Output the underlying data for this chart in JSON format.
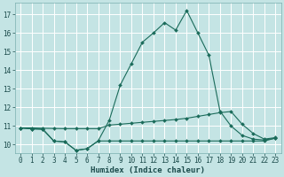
{
  "xlabel": "Humidex (Indice chaleur)",
  "bg_color": "#c4e4e4",
  "grid_color": "#ffffff",
  "line_color": "#1a6b5a",
  "xlim": [
    -0.5,
    23.5
  ],
  "ylim": [
    9.55,
    17.6
  ],
  "xticks": [
    0,
    1,
    2,
    3,
    4,
    5,
    6,
    7,
    8,
    9,
    10,
    11,
    12,
    13,
    14,
    15,
    16,
    17,
    18,
    19,
    20,
    21,
    22,
    23
  ],
  "yticks": [
    10,
    11,
    12,
    13,
    14,
    15,
    16,
    17
  ],
  "line1_y": [
    10.9,
    10.85,
    10.85,
    10.2,
    10.15,
    9.7,
    9.78,
    10.2,
    11.3,
    13.2,
    14.35,
    15.5,
    16.0,
    16.55,
    16.15,
    17.2,
    16.0,
    14.8,
    11.8,
    11.0,
    10.5,
    10.3,
    10.25,
    10.35
  ],
  "line2_y": [
    10.9,
    10.9,
    10.88,
    10.87,
    10.86,
    10.86,
    10.86,
    10.86,
    11.05,
    11.1,
    11.15,
    11.2,
    11.25,
    11.3,
    11.35,
    11.42,
    11.52,
    11.62,
    11.72,
    11.78,
    11.1,
    10.6,
    10.3,
    10.38
  ],
  "line3_y": [
    10.9,
    10.85,
    10.82,
    10.2,
    10.15,
    9.7,
    9.78,
    10.2,
    10.2,
    10.2,
    10.2,
    10.2,
    10.2,
    10.2,
    10.2,
    10.2,
    10.2,
    10.2,
    10.2,
    10.2,
    10.2,
    10.2,
    10.2,
    10.35
  ],
  "marker_size": 2.0,
  "line_width": 0.8,
  "tick_fontsize": 5.5,
  "label_fontsize": 6.5
}
